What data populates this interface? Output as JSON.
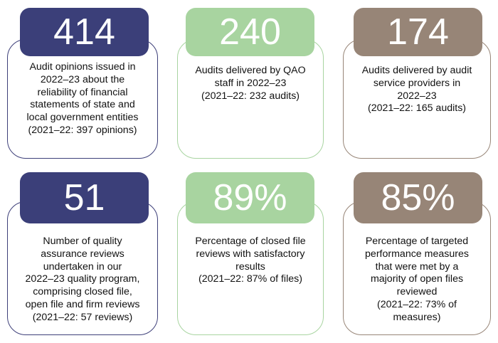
{
  "stats": [
    {
      "value": "414",
      "lines": [
        "Audit opinions issued in",
        "2022–23 about the",
        "reliability of financial",
        "statements of state and",
        "local government entities",
        "(2021–22: 397 opinions)"
      ]
    },
    {
      "value": "240",
      "lines": [
        "Audits delivered by QAO",
        "staff in 2022–23",
        "(2021–22: 232 audits)"
      ]
    },
    {
      "value": "174",
      "lines": [
        "Audits delivered by audit",
        "service providers in",
        "2022–23",
        "(2021–22: 165 audits)"
      ]
    },
    {
      "value": "51",
      "lines": [
        "Number of quality",
        "assurance reviews",
        "undertaken in our",
        "2022–23 quality program,",
        "comprising closed file,",
        "open file and firm reviews",
        "(2021–22: 57 reviews)"
      ]
    },
    {
      "value": "89%",
      "lines": [
        "Percentage of closed file",
        "reviews with satisfactory",
        "results",
        "(2021–22: 87% of files)"
      ]
    },
    {
      "value": "85%",
      "lines": [
        "Percentage of targeted",
        "performance measures",
        "that were met by a",
        "majority of open files",
        "reviewed",
        "(2021–22: 73% of",
        "measures)"
      ]
    }
  ],
  "colors": {
    "navy": "#3b3f79",
    "green": "#a8d4a0",
    "brown": "#978577"
  }
}
